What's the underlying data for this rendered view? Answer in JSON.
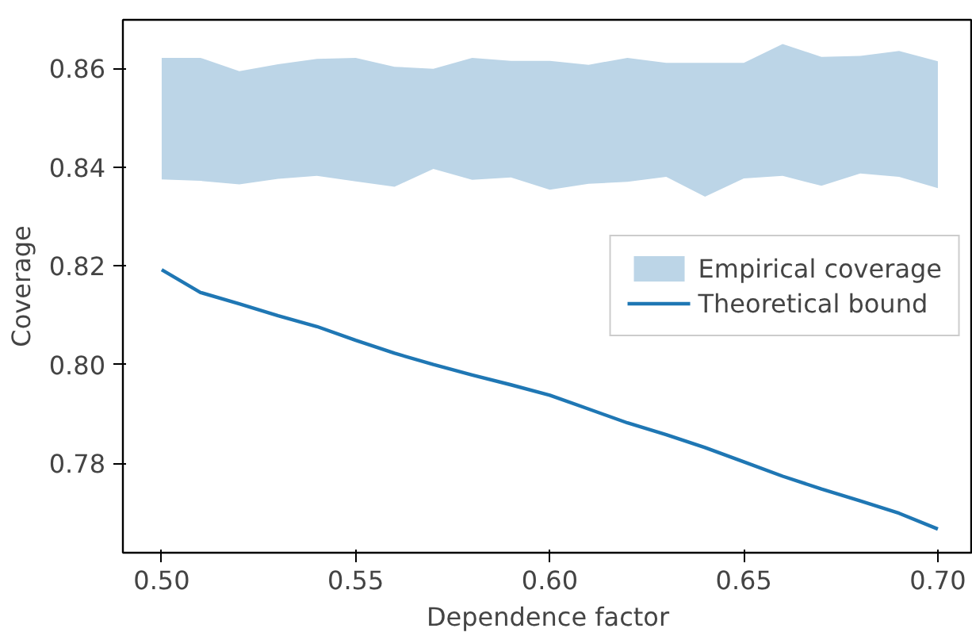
{
  "chart_data": {
    "type": "line",
    "xlabel": "Dependence factor",
    "ylabel": "Coverage",
    "x": [
      0.5,
      0.51,
      0.52,
      0.53,
      0.54,
      0.55,
      0.56,
      0.57,
      0.58,
      0.59,
      0.6,
      0.61,
      0.62,
      0.63,
      0.64,
      0.65,
      0.66,
      0.67,
      0.68,
      0.69,
      0.7
    ],
    "series": [
      {
        "name": "Empirical coverage",
        "color": "#bcd5e7",
        "values": [
          null,
          null,
          null,
          null,
          null,
          null,
          null,
          null,
          null,
          null,
          null,
          null,
          null,
          null,
          null,
          null,
          null,
          null,
          null,
          null,
          null
        ],
        "lower": [
          0.8375,
          0.8372,
          0.8365,
          0.8376,
          0.8382,
          0.8371,
          0.836,
          0.8396,
          0.8374,
          0.8379,
          0.8354,
          0.8366,
          0.837,
          0.838,
          0.834,
          0.8377,
          0.8382,
          0.8362,
          0.8387,
          0.838,
          0.8357
        ],
        "upper": [
          0.8621,
          0.8621,
          0.8594,
          0.8608,
          0.8619,
          0.8621,
          0.8603,
          0.8599,
          0.8621,
          0.8615,
          0.8615,
          0.8607,
          0.8621,
          0.8611,
          0.8611,
          0.8611,
          0.8649,
          0.8623,
          0.8625,
          0.8635,
          0.8614
        ]
      },
      {
        "name": "Theoretical bound",
        "color": "#1f77b4",
        "values": [
          0.8192,
          0.8146,
          0.8123,
          0.8099,
          0.8077,
          0.8049,
          0.8023,
          0.8,
          0.7979,
          0.7959,
          0.7938,
          0.791,
          0.7882,
          0.7858,
          0.7832,
          0.7803,
          0.7774,
          0.7748,
          0.7724,
          0.7699,
          0.7667
        ]
      }
    ],
    "xlim": [
      0.49,
      0.709
    ],
    "ylim": [
      0.7619,
      0.8698
    ],
    "xticks": [
      {
        "value": 0.5,
        "label": "0.50"
      },
      {
        "value": 0.55,
        "label": "0.55"
      },
      {
        "value": 0.6,
        "label": "0.60"
      },
      {
        "value": 0.65,
        "label": "0.65"
      },
      {
        "value": 0.7,
        "label": "0.70"
      }
    ],
    "yticks": [
      {
        "value": 0.78,
        "label": "0.78"
      },
      {
        "value": 0.8,
        "label": "0.80"
      },
      {
        "value": 0.82,
        "label": "0.82"
      },
      {
        "value": 0.84,
        "label": "0.84"
      },
      {
        "value": 0.86,
        "label": "0.86"
      }
    ],
    "grid": false,
    "legend": "right",
    "line_style": "solid"
  }
}
